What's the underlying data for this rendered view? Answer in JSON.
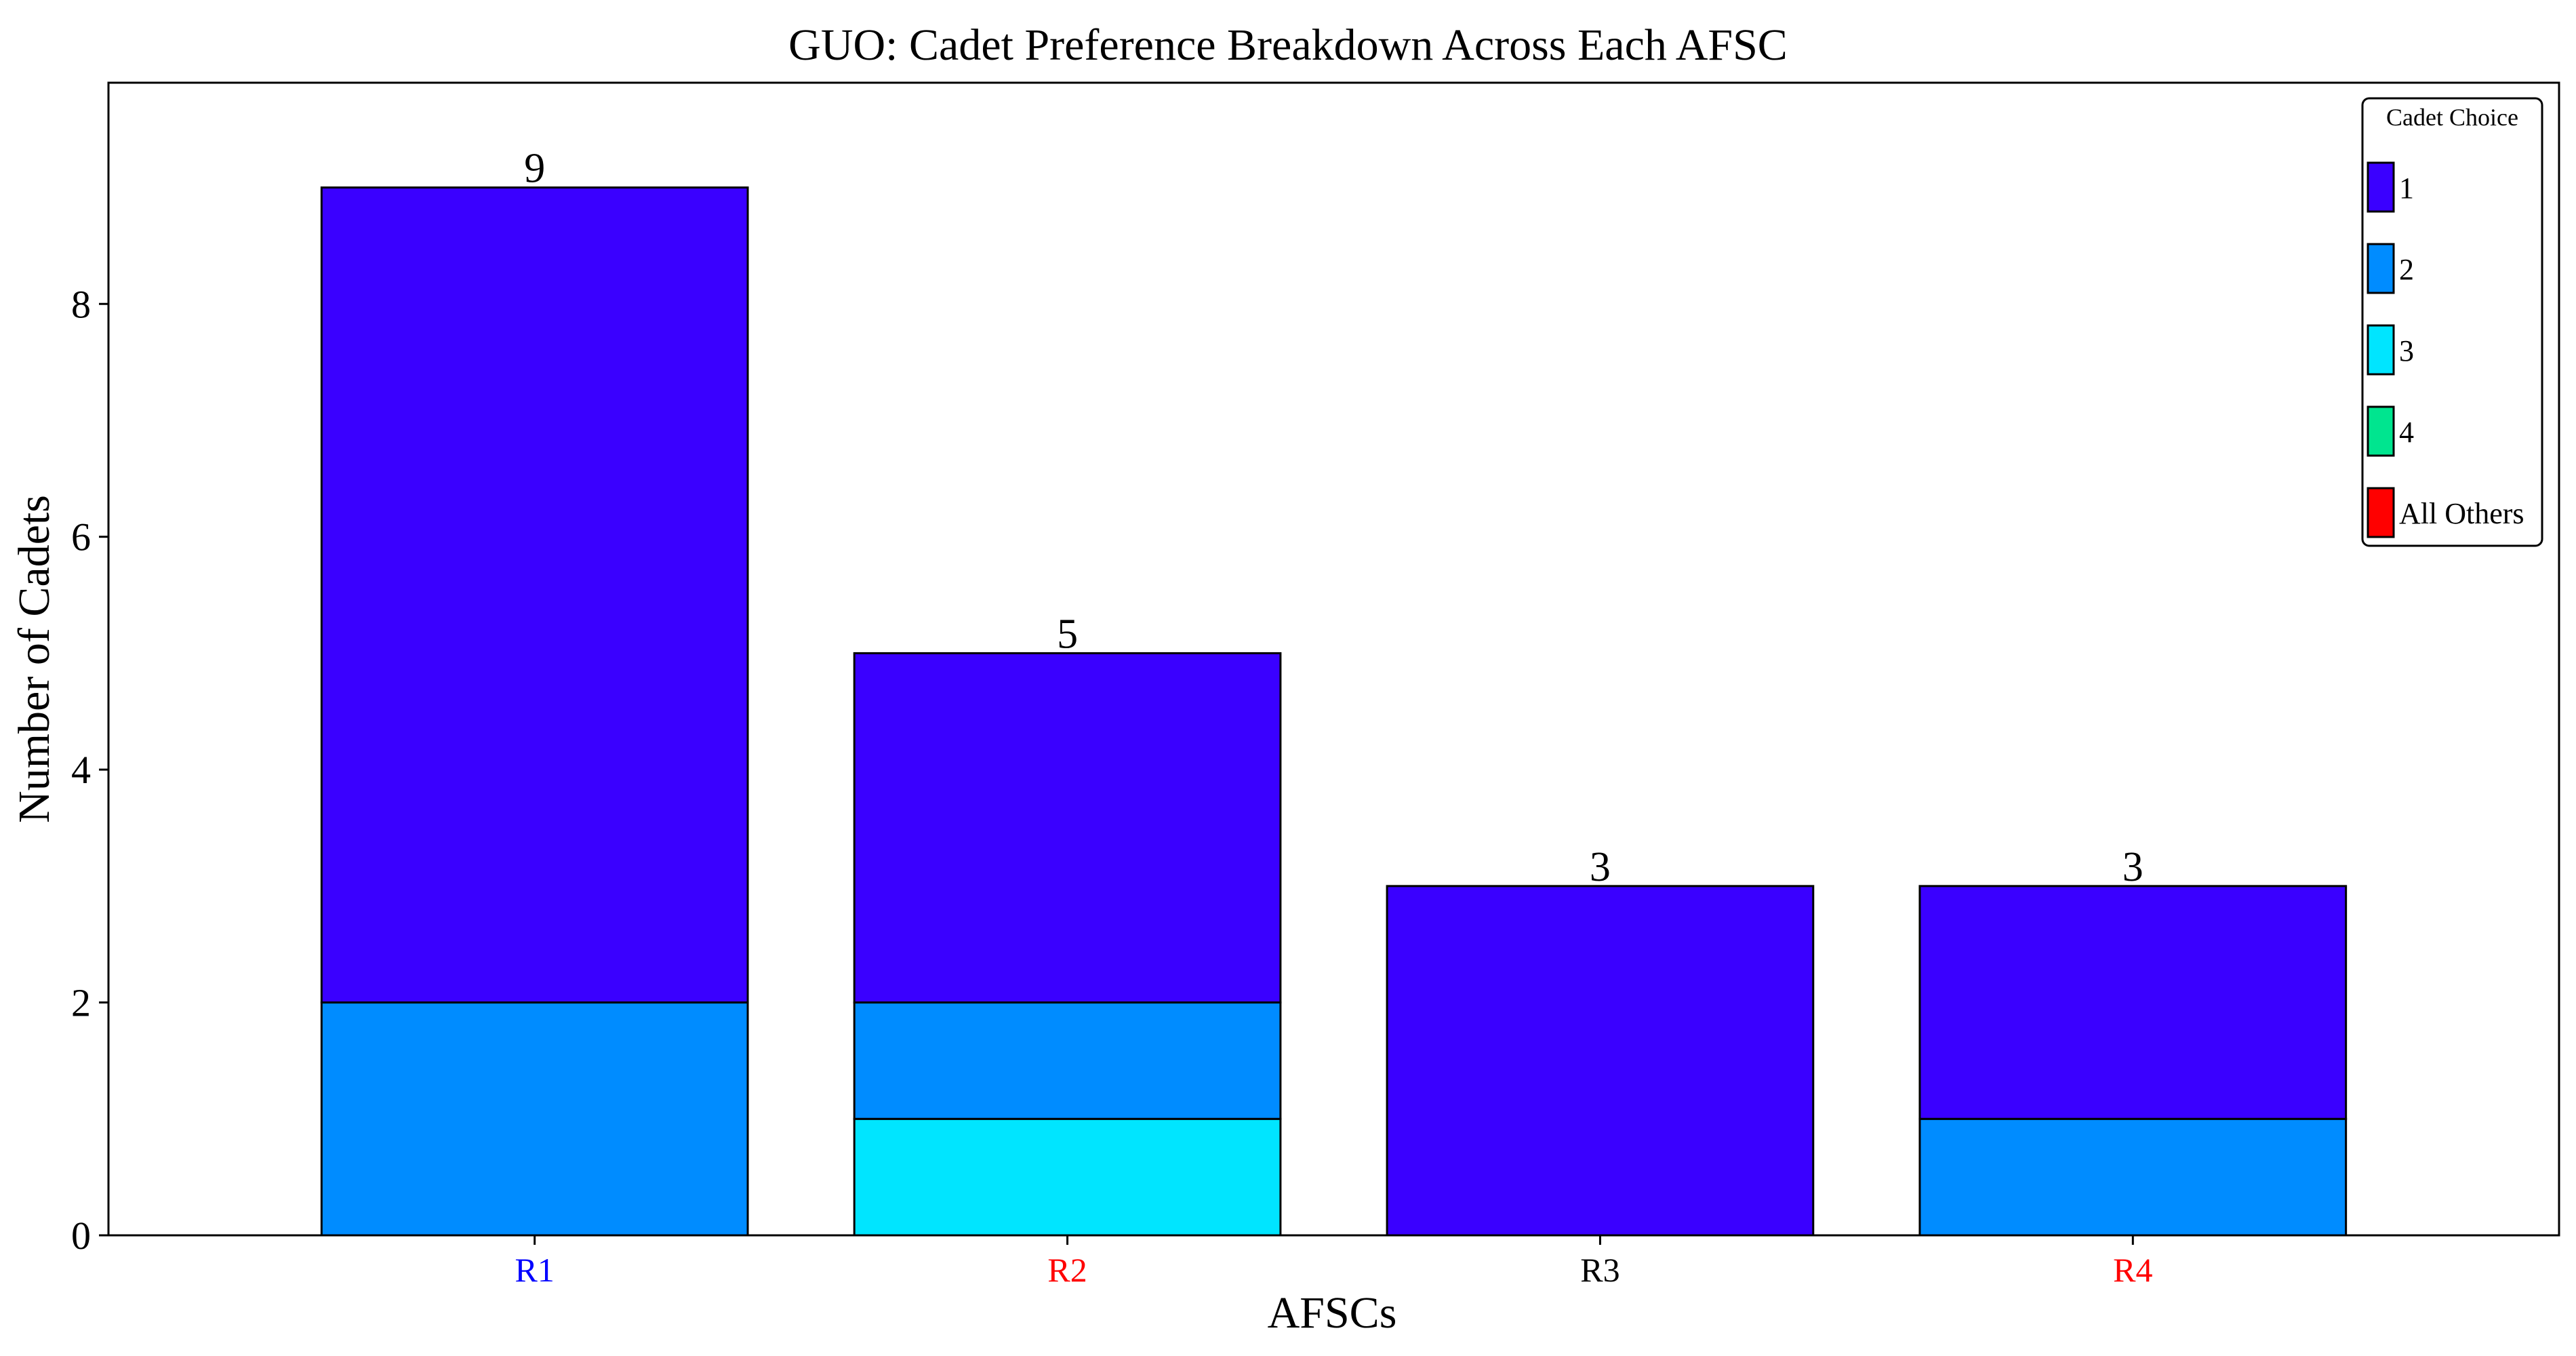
{
  "chart_data": {
    "type": "bar",
    "stacked": true,
    "title": "GUO: Cadet Preference Breakdown Across Each AFSC",
    "xlabel": "AFSCs",
    "ylabel": "Number of Cadets",
    "ylim": [
      0,
      9.9
    ],
    "yticks": [
      0,
      2,
      4,
      6,
      8
    ],
    "categories": [
      "R1",
      "R2",
      "R3",
      "R4"
    ],
    "category_label_colors": [
      "#0000ff",
      "#ff0000",
      "#000000",
      "#ff0000"
    ],
    "series": [
      {
        "name": "All Others",
        "color": "#ff0000",
        "values": [
          0,
          0,
          0,
          0
        ]
      },
      {
        "name": "4",
        "color": "#00e58f",
        "values": [
          0,
          0,
          0,
          0
        ]
      },
      {
        "name": "3",
        "color": "#00e5ff",
        "values": [
          0,
          1,
          0,
          0
        ]
      },
      {
        "name": "2",
        "color": "#008cff",
        "values": [
          2,
          1,
          0,
          1
        ]
      },
      {
        "name": "1",
        "color": "#3a00ff",
        "values": [
          7,
          3,
          3,
          2
        ]
      }
    ],
    "totals": [
      "9",
      "5",
      "3",
      "3"
    ],
    "legend": {
      "title": "Cadet Choice",
      "placement": "top-right",
      "entries": [
        {
          "label": "1",
          "color": "#3a00ff"
        },
        {
          "label": "2",
          "color": "#008cff"
        },
        {
          "label": "3",
          "color": "#00e5ff"
        },
        {
          "label": "4",
          "color": "#00e58f"
        },
        {
          "label": "All Others",
          "color": "#ff0000"
        }
      ]
    },
    "grid": false
  }
}
